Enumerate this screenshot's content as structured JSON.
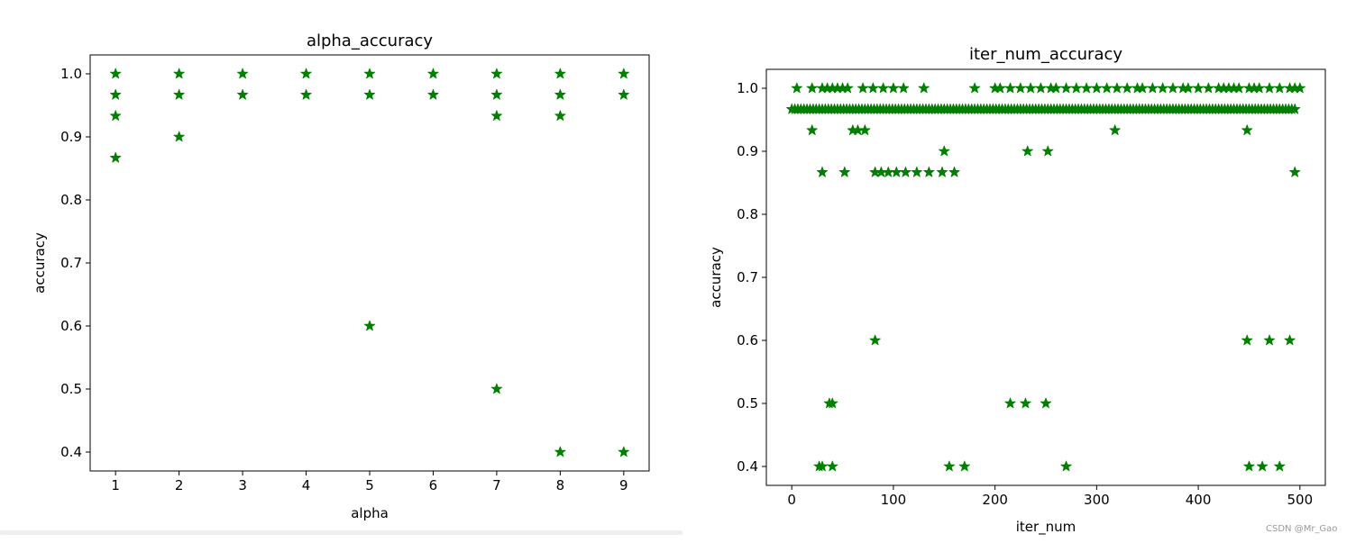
{
  "watermark": "CSDN @Mr_Gao",
  "colors": {
    "marker": "#007f00",
    "axes": "#000000"
  },
  "chart_data": [
    {
      "type": "scatter",
      "title": "alpha_accuracy",
      "xlabel": "alpha",
      "ylabel": "accuracy",
      "marker": "star",
      "xlim": [
        0.6,
        9.4
      ],
      "ylim": [
        0.37,
        1.03
      ],
      "xticks": [
        1,
        2,
        3,
        4,
        5,
        6,
        7,
        8,
        9
      ],
      "yticks": [
        0.4,
        0.5,
        0.6,
        0.7,
        0.8,
        0.9,
        1.0
      ],
      "ytick_labels": [
        "0.4",
        "0.5",
        "0.6",
        "0.7",
        "0.8",
        "0.9",
        "1.0"
      ],
      "grid": false,
      "series": [
        {
          "x": [
            1,
            1,
            1,
            1,
            2,
            2,
            2,
            3,
            3,
            4,
            4,
            5,
            5,
            5,
            6,
            6,
            7,
            7,
            7,
            7,
            8,
            8,
            8,
            8,
            9,
            9,
            9
          ],
          "y": [
            1.0,
            0.9667,
            0.9333,
            0.8667,
            1.0,
            0.9667,
            0.9,
            1.0,
            0.9667,
            1.0,
            0.9667,
            1.0,
            0.9667,
            0.6,
            1.0,
            0.9667,
            1.0,
            0.9667,
            0.9333,
            0.5,
            1.0,
            0.9667,
            0.9333,
            0.4,
            1.0,
            0.9667,
            0.4
          ]
        }
      ]
    },
    {
      "type": "scatter",
      "title": "iter_num_accuracy",
      "xlabel": "iter_num",
      "ylabel": "accuracy",
      "marker": "star",
      "xlim": [
        -25,
        525
      ],
      "ylim": [
        0.37,
        1.03
      ],
      "xticks": [
        0,
        100,
        200,
        300,
        400,
        500
      ],
      "yticks": [
        0.4,
        0.5,
        0.6,
        0.7,
        0.8,
        0.9,
        1.0
      ],
      "ytick_labels": [
        "0.4",
        "0.5",
        "0.6",
        "0.7",
        "0.8",
        "0.9",
        "1.0"
      ],
      "grid": false,
      "baseline": {
        "from": 0,
        "to": 495,
        "step": 3,
        "value": 0.9667
      },
      "series": [
        {
          "x": [
            5,
            20,
            30,
            35,
            40,
            45,
            50,
            55,
            70,
            80,
            90,
            100,
            110,
            130,
            180,
            200,
            205,
            215,
            225,
            235,
            245,
            255,
            260,
            270,
            280,
            290,
            300,
            310,
            320,
            330,
            340,
            345,
            355,
            365,
            375,
            385,
            390,
            400,
            410,
            420,
            425,
            430,
            435,
            440,
            450,
            455,
            460,
            470,
            480,
            490,
            495,
            500,
            20,
            60,
            65,
            72,
            318,
            448,
            30,
            52,
            82,
            88,
            95,
            103,
            112,
            123,
            135,
            148,
            160,
            495,
            150,
            232,
            252,
            82,
            448,
            470,
            490,
            37,
            40,
            215,
            230,
            250,
            27,
            30,
            40,
            155,
            170,
            270,
            450,
            463,
            480
          ],
          "y": [
            1.0,
            1.0,
            1.0,
            1.0,
            1.0,
            1.0,
            1.0,
            1.0,
            1.0,
            1.0,
            1.0,
            1.0,
            1.0,
            1.0,
            1.0,
            1.0,
            1.0,
            1.0,
            1.0,
            1.0,
            1.0,
            1.0,
            1.0,
            1.0,
            1.0,
            1.0,
            1.0,
            1.0,
            1.0,
            1.0,
            1.0,
            1.0,
            1.0,
            1.0,
            1.0,
            1.0,
            1.0,
            1.0,
            1.0,
            1.0,
            1.0,
            1.0,
            1.0,
            1.0,
            1.0,
            1.0,
            1.0,
            1.0,
            1.0,
            1.0,
            1.0,
            1.0,
            0.9333,
            0.9333,
            0.9333,
            0.9333,
            0.9333,
            0.9333,
            0.8667,
            0.8667,
            0.8667,
            0.8667,
            0.8667,
            0.8667,
            0.8667,
            0.8667,
            0.8667,
            0.8667,
            0.8667,
            0.8667,
            0.9,
            0.9,
            0.9,
            0.6,
            0.6,
            0.6,
            0.6,
            0.5,
            0.5,
            0.5,
            0.5,
            0.5,
            0.4,
            0.4,
            0.4,
            0.4,
            0.4,
            0.4,
            0.4,
            0.4,
            0.4
          ]
        }
      ]
    }
  ]
}
